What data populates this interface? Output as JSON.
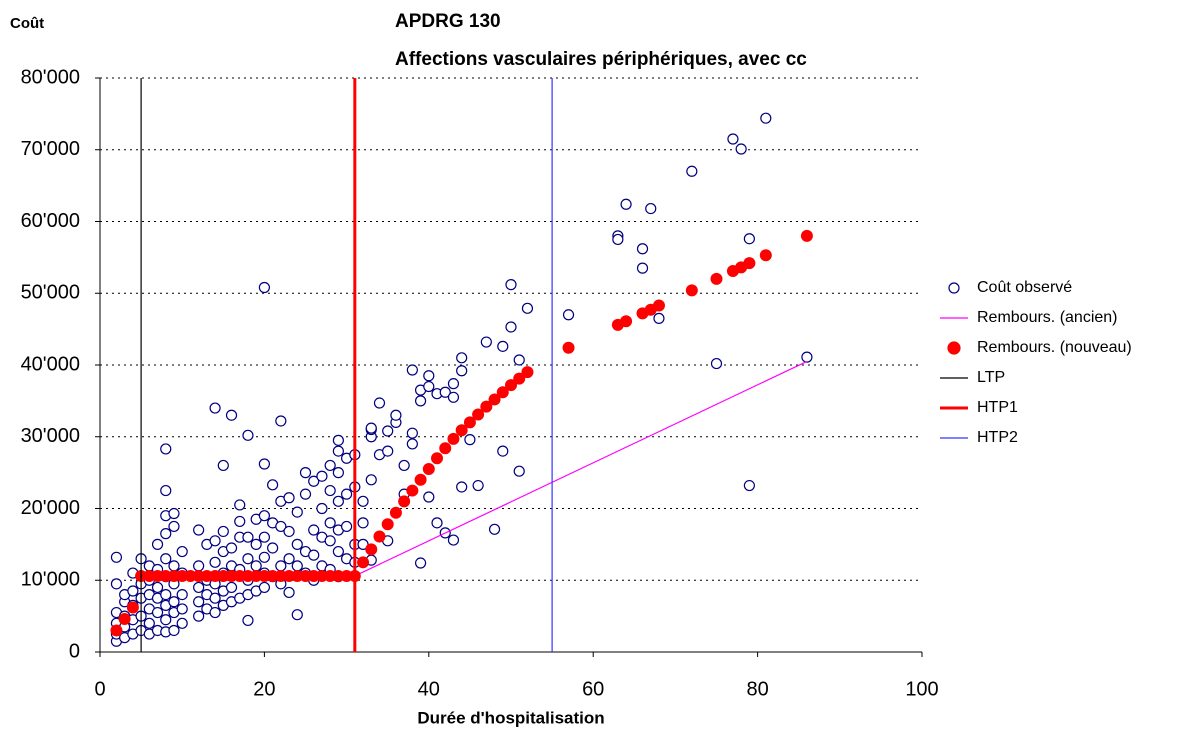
{
  "chart_data": {
    "type": "scatter",
    "title": "APDRG 130",
    "subtitle": "Affections vasculaires périphériques, avec cc",
    "y_label": "Coût",
    "x_label": "Durée d'hospitalisation",
    "xlim": [
      0,
      100
    ],
    "xticks": [
      0,
      20,
      40,
      60,
      80,
      100
    ],
    "ylim": [
      0,
      80000
    ],
    "yticks": [
      0,
      {
        "value": 10000,
        "label": "10'000"
      },
      {
        "value": 20000,
        "label": "20'000"
      },
      {
        "value": 30000,
        "label": "30'000"
      },
      {
        "value": 40000,
        "label": "40'000"
      },
      {
        "value": 50000,
        "label": "50'000"
      },
      {
        "value": 60000,
        "label": "60'000"
      },
      {
        "value": 70000,
        "label": "70'000"
      },
      {
        "value": 80000,
        "label": "80'000"
      }
    ],
    "grid": true,
    "legend": "right",
    "series": [
      {
        "name": "Coût observé",
        "color": "#000080",
        "marker": "open-circle",
        "x": [
          2,
          2,
          2,
          2,
          2,
          2,
          3,
          3,
          3,
          3,
          3,
          4,
          4,
          4,
          4,
          4,
          5,
          5,
          5,
          5,
          5,
          6,
          6,
          6,
          6,
          6,
          6,
          7,
          7,
          7,
          7,
          7,
          7,
          8,
          8,
          8,
          8,
          8,
          8,
          8,
          8,
          8,
          8,
          9,
          9,
          9,
          9,
          9,
          9,
          9,
          10,
          10,
          10,
          10,
          10,
          12,
          12,
          12,
          12,
          12,
          13,
          13,
          13,
          13,
          14,
          14,
          14,
          14,
          14,
          14,
          15,
          15,
          15,
          15,
          15,
          15,
          16,
          16,
          16,
          16,
          16,
          17,
          17,
          17,
          17,
          17,
          18,
          18,
          18,
          18,
          18,
          18,
          19,
          19,
          19,
          19,
          20,
          20,
          20,
          20,
          20,
          20,
          20,
          21,
          21,
          21,
          21,
          22,
          22,
          22,
          22,
          22,
          23,
          23,
          23,
          23,
          24,
          24,
          24,
          24,
          25,
          25,
          25,
          25,
          26,
          26,
          26,
          26,
          27,
          27,
          27,
          27,
          28,
          28,
          28,
          28,
          28,
          29,
          29,
          29,
          29,
          29,
          29,
          29,
          30,
          30,
          30,
          30,
          31,
          31,
          31,
          31,
          32,
          32,
          32,
          33,
          33,
          33,
          33,
          33,
          34,
          34,
          35,
          35,
          35,
          36,
          36,
          37,
          37,
          38,
          38,
          38,
          39,
          39,
          39,
          40,
          40,
          40,
          41,
          41,
          42,
          42,
          43,
          43,
          43,
          44,
          44,
          44,
          45,
          46,
          47,
          48,
          49,
          49,
          50,
          50,
          51,
          51,
          52,
          57,
          63,
          63,
          64,
          66,
          66,
          67,
          68,
          72,
          75,
          77,
          78,
          79,
          79,
          81,
          86
        ],
        "values": [
          1500,
          2500,
          4000,
          5500,
          9500,
          13200,
          2000,
          3500,
          5000,
          7000,
          8000,
          2500,
          4500,
          6500,
          8500,
          11000,
          3000,
          5000,
          7500,
          9500,
          13000,
          2500,
          4000,
          6000,
          8000,
          10000,
          12000,
          3000,
          5500,
          7500,
          9000,
          11500,
          15000,
          2800,
          4500,
          6500,
          8000,
          10500,
          13000,
          16500,
          19000,
          22500,
          28300,
          3000,
          5500,
          7000,
          9500,
          12000,
          17500,
          19300,
          4000,
          6000,
          8000,
          11000,
          14000,
          5000,
          7000,
          9000,
          12000,
          17000,
          6000,
          8000,
          10000,
          15000,
          5500,
          7500,
          9500,
          12500,
          15500,
          34000,
          6500,
          8500,
          11000,
          14000,
          16800,
          26000,
          7000,
          9000,
          12000,
          14500,
          33000,
          7500,
          11500,
          16000,
          18200,
          20500,
          4400,
          8000,
          10000,
          13000,
          16000,
          30200,
          8500,
          12000,
          15000,
          18500,
          9000,
          11000,
          13200,
          16000,
          19000,
          26200,
          50800,
          10500,
          14500,
          18000,
          23300,
          9500,
          12000,
          17500,
          21000,
          32200,
          8300,
          13000,
          16800,
          21500,
          5200,
          12000,
          15000,
          19500,
          11000,
          14000,
          22000,
          25000,
          10000,
          13500,
          17000,
          23800,
          12000,
          16000,
          20000,
          24500,
          11500,
          15500,
          18000,
          22500,
          26000,
          10500,
          14000,
          17000,
          21000,
          25000,
          28000,
          29500,
          13000,
          17500,
          22000,
          27000,
          12500,
          15000,
          23000,
          27500,
          15000,
          18000,
          21000,
          12800,
          24000,
          30000,
          31000,
          31200,
          27500,
          34700,
          15500,
          28000,
          30800,
          32000,
          33000,
          22000,
          26000,
          29000,
          30500,
          39300,
          12400,
          35000,
          36500,
          21600,
          37000,
          38500,
          18000,
          36000,
          16600,
          36200,
          15600,
          35500,
          37400,
          23000,
          39200,
          41000,
          29600,
          23200,
          43200,
          17100,
          28000,
          42600,
          45300,
          51200,
          25200,
          40700,
          47900,
          47000,
          58000,
          57500,
          62400,
          56200,
          53500,
          61800,
          46500,
          67000,
          40200,
          71500,
          70100,
          57600,
          23200,
          74400,
          41100
        ]
      },
      {
        "name": "Rembours. (ancien)",
        "color": "#ff00ff",
        "marker": "line",
        "width": 1.2,
        "x": [
          31,
          86
        ],
        "values": [
          10600,
          40500
        ]
      },
      {
        "name": "Rembours. (nouveau)",
        "color": "#ff0000",
        "marker": "filled-circle",
        "x": [
          2,
          3,
          4,
          5,
          6,
          7,
          8,
          9,
          10,
          11,
          12,
          13,
          14,
          15,
          16,
          17,
          18,
          19,
          20,
          21,
          22,
          23,
          24,
          25,
          26,
          27,
          28,
          29,
          30,
          31,
          32,
          33,
          34,
          35,
          36,
          37,
          38,
          39,
          40,
          41,
          42,
          43,
          44,
          45,
          46,
          47,
          48,
          49,
          50,
          51,
          52,
          57,
          63,
          64,
          66,
          67,
          68,
          72,
          75,
          77,
          78,
          79,
          81,
          86
        ],
        "values": [
          3000,
          4600,
          6200,
          10600,
          10600,
          10600,
          10600,
          10600,
          10600,
          10600,
          10600,
          10600,
          10600,
          10600,
          10600,
          10600,
          10600,
          10600,
          10600,
          10600,
          10600,
          10600,
          10600,
          10600,
          10600,
          10600,
          10600,
          10600,
          10600,
          10600,
          12500,
          14300,
          16100,
          17800,
          19400,
          21000,
          22500,
          24000,
          25500,
          27000,
          28400,
          29700,
          30900,
          32000,
          33100,
          34200,
          35200,
          36200,
          37200,
          38100,
          39000,
          42400,
          45600,
          46100,
          47200,
          47700,
          48300,
          50400,
          52000,
          53100,
          53600,
          54200,
          55300,
          58000
        ]
      },
      {
        "name": "LTP",
        "color": "#000000",
        "marker": "line",
        "width": 1.2,
        "x": [
          5,
          5
        ],
        "values": [
          0,
          80000
        ]
      },
      {
        "name": "HTP1",
        "color": "#ff0000",
        "marker": "line",
        "width": 3,
        "x": [
          31,
          31
        ],
        "values": [
          0,
          80000
        ]
      },
      {
        "name": "HTP2",
        "color": "#3333ff",
        "marker": "line",
        "width": 1.2,
        "x": [
          55,
          55
        ],
        "values": [
          0,
          80000
        ]
      }
    ]
  }
}
